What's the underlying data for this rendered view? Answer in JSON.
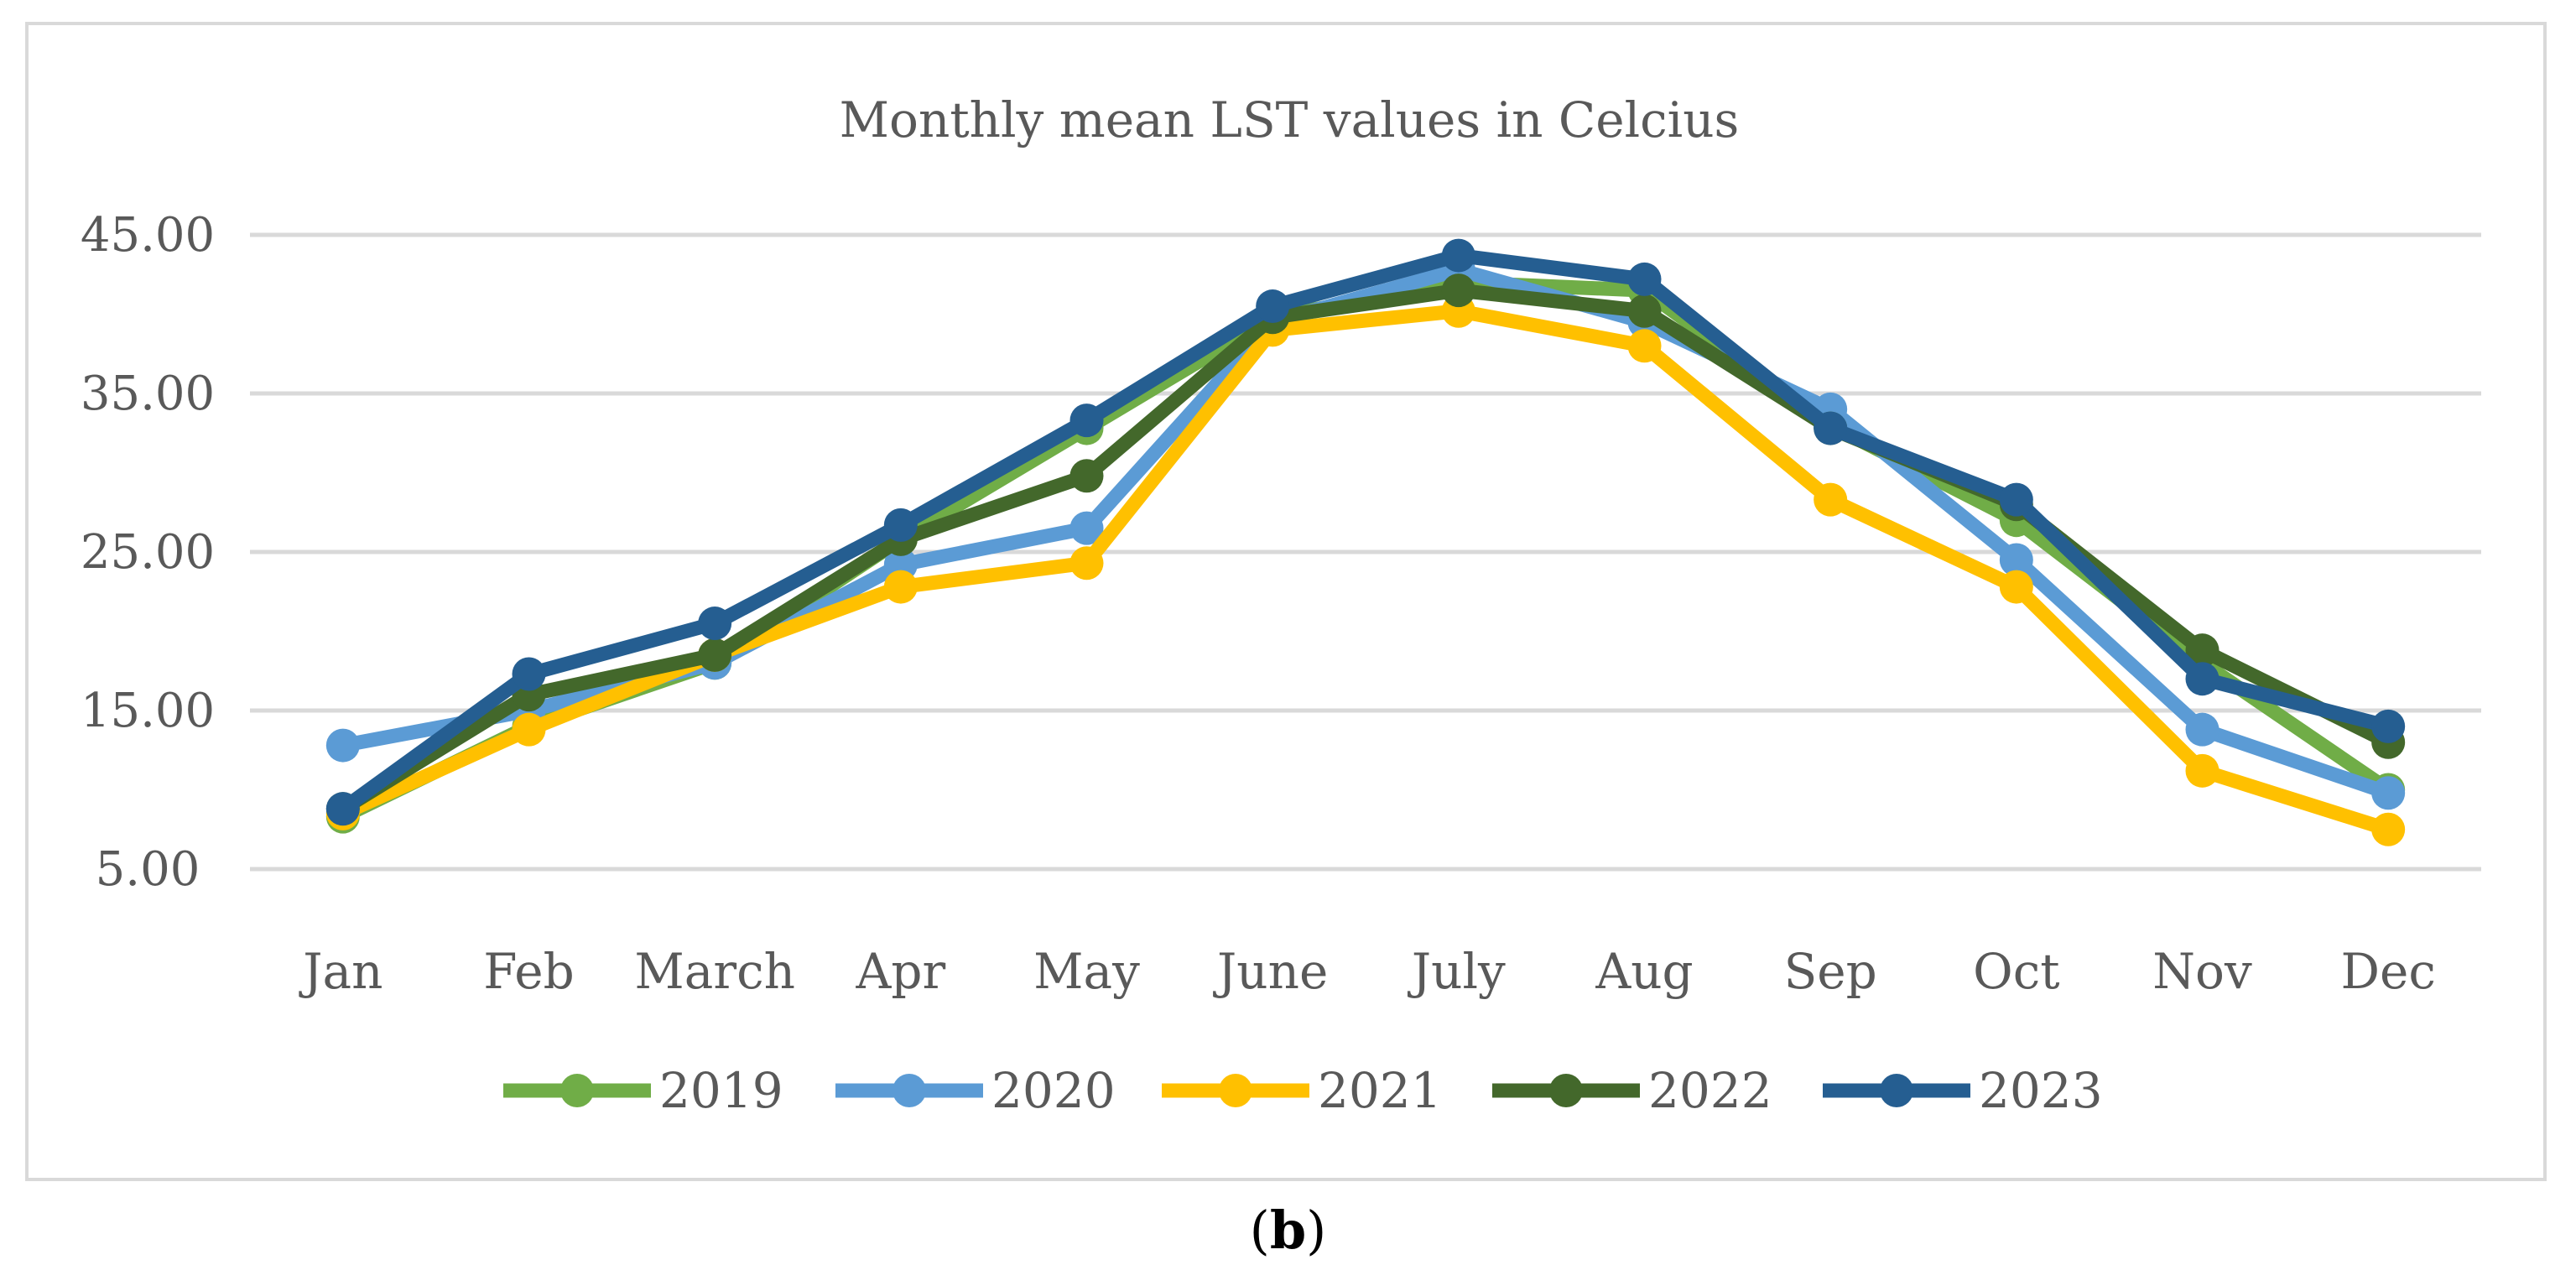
{
  "chart_data": {
    "type": "line",
    "title": "Monthly mean LST values in Celcius",
    "xlabel": "",
    "ylabel": "",
    "categories": [
      "Jan",
      "Feb",
      "March",
      "Apr",
      "May",
      "June",
      "July",
      "Aug",
      "Sep",
      "Oct",
      "Nov",
      "Dec"
    ],
    "yticks": [
      "5.00",
      "15.00",
      "25.00",
      "35.00",
      "45.00"
    ],
    "ylim": [
      5,
      45
    ],
    "grid": true,
    "legend_position": "bottom",
    "series": [
      {
        "name": "2019",
        "color": "#70ad47",
        "values": [
          8.3,
          14.0,
          18.0,
          25.8,
          32.8,
          39.8,
          42.0,
          41.5,
          33.0,
          27.0,
          18.0,
          10.0
        ]
      },
      {
        "name": "2020",
        "color": "#5b9bd5",
        "values": [
          12.8,
          15.0,
          18.0,
          24.2,
          26.5,
          39.5,
          42.8,
          39.5,
          34.0,
          24.5,
          13.8,
          9.8
        ]
      },
      {
        "name": "2021",
        "color": "#ffc000",
        "values": [
          8.5,
          13.8,
          18.5,
          22.8,
          24.3,
          39.0,
          40.2,
          38.0,
          28.3,
          22.8,
          11.2,
          7.5
        ]
      },
      {
        "name": "2022",
        "color": "#43682b",
        "values": [
          8.8,
          16.0,
          18.5,
          25.8,
          29.8,
          39.8,
          41.5,
          40.2,
          32.8,
          28.0,
          18.8,
          13.0
        ]
      },
      {
        "name": "2023",
        "color": "#255e91",
        "values": [
          8.8,
          17.3,
          20.5,
          26.7,
          33.3,
          40.5,
          43.7,
          42.2,
          32.8,
          28.3,
          17.0,
          14.0
        ]
      }
    ]
  },
  "caption": {
    "open": "(",
    "letter": "b",
    "close": ")"
  }
}
